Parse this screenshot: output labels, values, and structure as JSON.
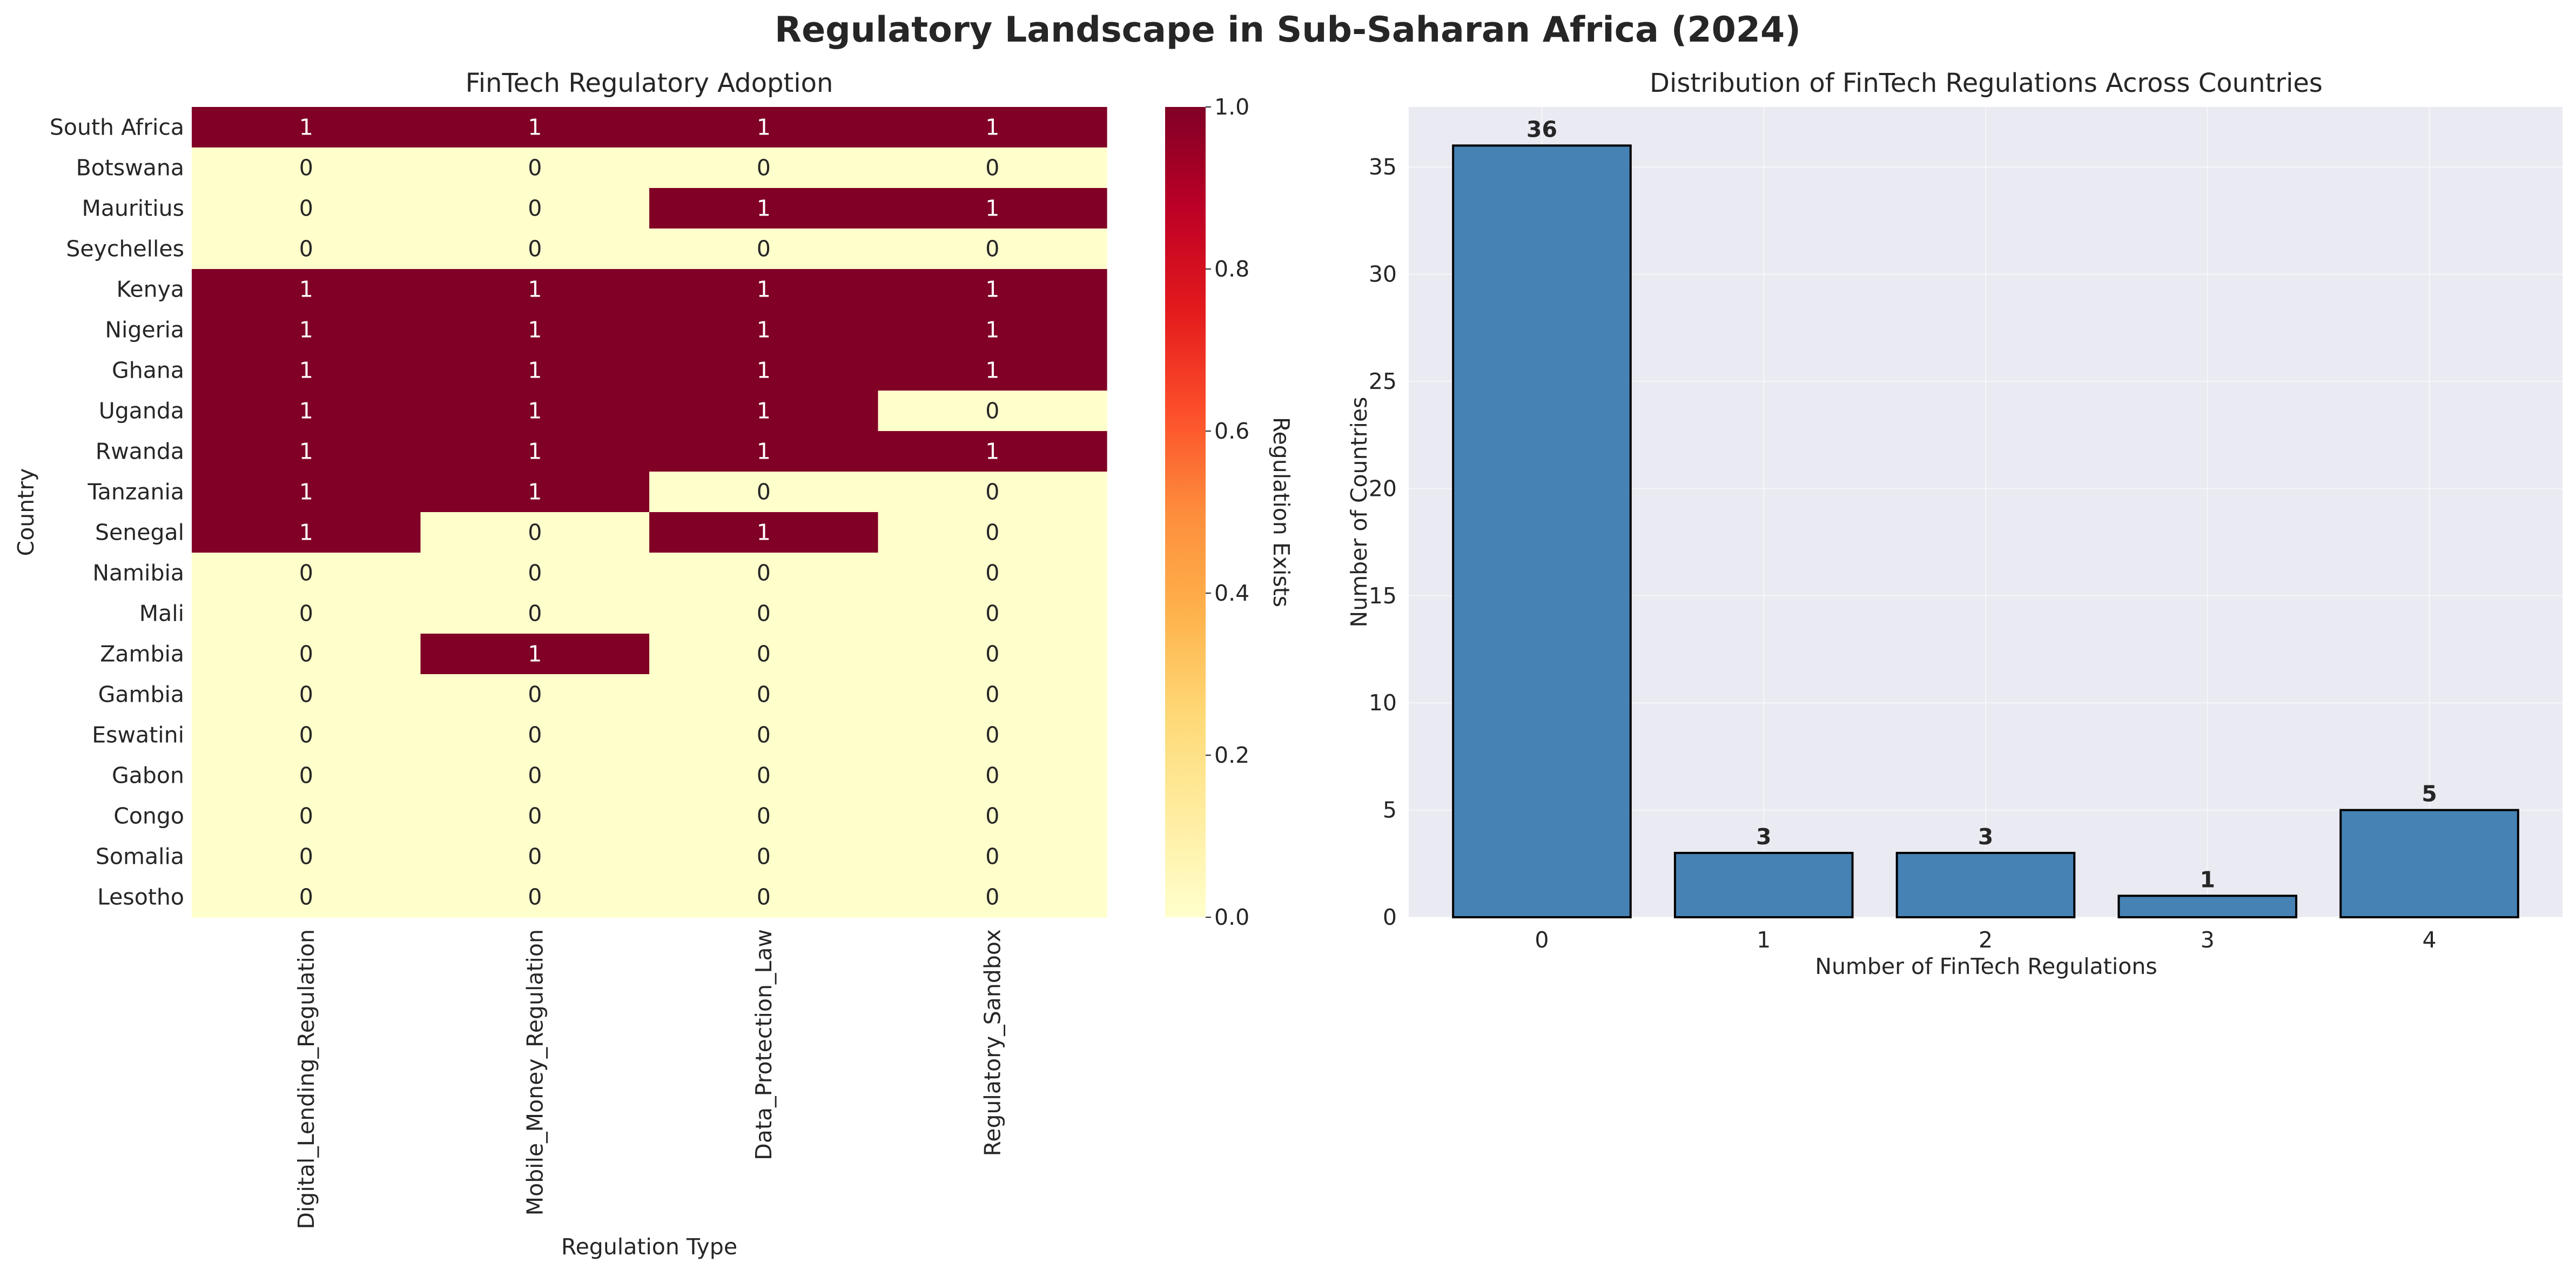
{
  "figure": {
    "suptitle": "Regulatory Landscape in Sub-Saharan Africa (2024)"
  },
  "chart_data": [
    {
      "type": "heatmap",
      "title": "FinTech Regulatory Adoption",
      "xlabel": "Regulation Type",
      "ylabel": "Country",
      "colorbar_label": "Regulation Exists",
      "colormap": "YlOrRd",
      "vmin": 0.0,
      "vmax": 1.0,
      "colorbar_ticks": [
        "0.0",
        "0.2",
        "0.4",
        "0.6",
        "0.8",
        "1.0"
      ],
      "columns": [
        "Digital_Lending_Regulation",
        "Mobile_Money_Regulation",
        "Data_Protection_Law",
        "Regulatory_Sandbox"
      ],
      "rows": [
        "South Africa",
        "Botswana",
        "Mauritius",
        "Seychelles",
        "Kenya",
        "Nigeria",
        "Ghana",
        "Uganda",
        "Rwanda",
        "Tanzania",
        "Senegal",
        "Namibia",
        "Mali",
        "Zambia",
        "Gambia",
        "Eswatini",
        "Gabon",
        "Congo",
        "Somalia",
        "Lesotho"
      ],
      "values": [
        [
          1,
          1,
          1,
          1
        ],
        [
          0,
          0,
          0,
          0
        ],
        [
          0,
          0,
          1,
          1
        ],
        [
          0,
          0,
          0,
          0
        ],
        [
          1,
          1,
          1,
          1
        ],
        [
          1,
          1,
          1,
          1
        ],
        [
          1,
          1,
          1,
          1
        ],
        [
          1,
          1,
          1,
          0
        ],
        [
          1,
          1,
          1,
          1
        ],
        [
          1,
          1,
          0,
          0
        ],
        [
          1,
          0,
          1,
          0
        ],
        [
          0,
          0,
          0,
          0
        ],
        [
          0,
          0,
          0,
          0
        ],
        [
          0,
          1,
          0,
          0
        ],
        [
          0,
          0,
          0,
          0
        ],
        [
          0,
          0,
          0,
          0
        ],
        [
          0,
          0,
          0,
          0
        ],
        [
          0,
          0,
          0,
          0
        ],
        [
          0,
          0,
          0,
          0
        ],
        [
          0,
          0,
          0,
          0
        ]
      ],
      "colors": {
        "zero": "#ffffcc",
        "one": "#800026"
      }
    },
    {
      "type": "bar",
      "title": "Distribution of FinTech Regulations Across Countries",
      "xlabel": "Number of FinTech Regulations",
      "ylabel": "Number of Countries",
      "categories": [
        "0",
        "1",
        "2",
        "3",
        "4"
      ],
      "values": [
        36,
        3,
        3,
        1,
        5
      ],
      "ylim": [
        0,
        37.8
      ],
      "yticks": [
        "0",
        "5",
        "10",
        "15",
        "20",
        "25",
        "30",
        "35"
      ],
      "bar_color": "#4682b4",
      "edge_color": "#000000",
      "background": "#eaeaf2",
      "grid": true
    }
  ]
}
